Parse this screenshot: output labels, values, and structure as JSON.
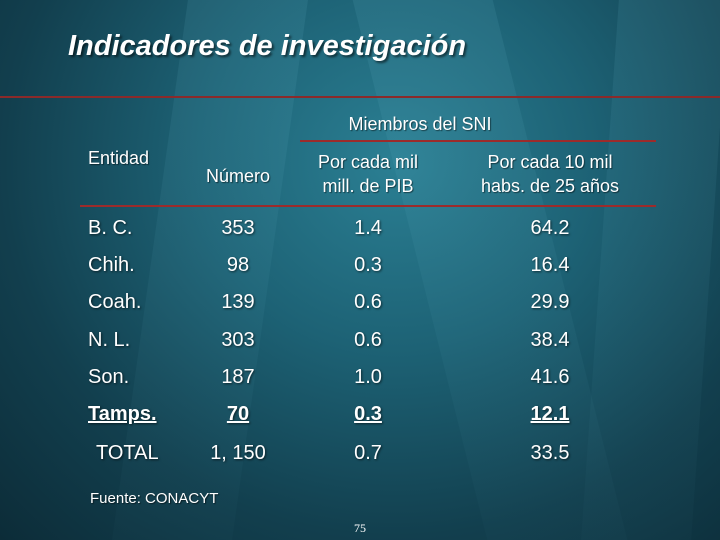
{
  "slide": {
    "title": "Indicadores de investigación",
    "group_header": "Miembros del SNI",
    "columns": {
      "entity": "Entidad",
      "number": "Número",
      "per_gdp": [
        "Por cada mil",
        "mill. de PIB"
      ],
      "per_pop": [
        "Por cada 10 mil",
        "habs. de 25 años"
      ]
    },
    "rows": [
      {
        "entity": "B. C.",
        "number": "353",
        "per_gdp": "1.4",
        "per_pop": "64.2"
      },
      {
        "entity": "Chih.",
        "number": "98",
        "per_gdp": "0.3",
        "per_pop": "16.4"
      },
      {
        "entity": "Coah.",
        "number": "139",
        "per_gdp": "0.6",
        "per_pop": "29.9"
      },
      {
        "entity": "N. L.",
        "number": "303",
        "per_gdp": "0.6",
        "per_pop": "38.4"
      },
      {
        "entity": "Son.",
        "number": "187",
        "per_gdp": "1.0",
        "per_pop": "41.6"
      },
      {
        "entity": "Tamps.",
        "number": "70",
        "per_gdp": "0.3",
        "per_pop": "12.1"
      },
      {
        "entity": "TOTAL",
        "number": "1, 150",
        "per_gdp": "0.7",
        "per_pop": "33.5"
      }
    ],
    "source": "Fuente: CONACYT",
    "page_number": "75",
    "colors": {
      "accent_rule": "#9c2b2b",
      "background": "#1d6275"
    }
  }
}
